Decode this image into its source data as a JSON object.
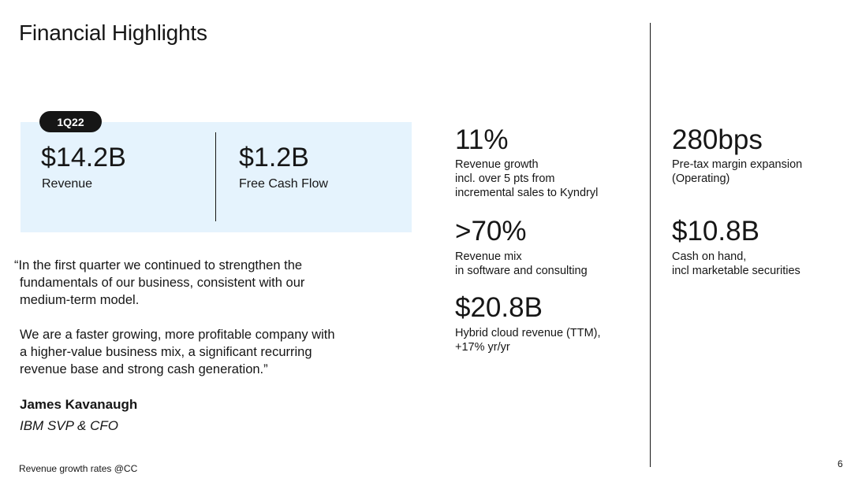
{
  "title": "Financial Highlights",
  "highlight_box": {
    "tag": "1Q22",
    "left": {
      "value": "$14.2B",
      "label": "Revenue"
    },
    "right": {
      "value": "$1.2B",
      "label": "Free Cash Flow"
    }
  },
  "quote": {
    "lines": [
      "“In the first quarter we continued to strengthen the",
      "fundamentals of our business, consistent with our",
      "medium-term model.",
      "We are a faster growing, more profitable company with",
      "a higher-value business mix, a significant recurring",
      "revenue base and strong cash generation.”"
    ],
    "author": "James Kavanaugh",
    "role": "IBM SVP & CFO"
  },
  "stats": [
    {
      "value": "11%",
      "desc": [
        "Revenue growth",
        "incl. over 5 pts from",
        "incremental sales to Kyndryl"
      ]
    },
    {
      "value": ">70%",
      "desc": [
        "Revenue mix",
        "in software and consulting"
      ]
    },
    {
      "value": "$20.8B",
      "desc": [
        "Hybrid cloud revenue (TTM),",
        "+17% yr/yr"
      ]
    },
    {
      "value": "280bps",
      "desc": [
        "Pre-tax margin expansion",
        "(Operating)"
      ]
    },
    {
      "value": "$10.8B",
      "desc": [
        "Cash on hand,",
        "incl marketable securities"
      ]
    }
  ],
  "footnote": "Revenue growth rates @CC",
  "page_number": "6"
}
